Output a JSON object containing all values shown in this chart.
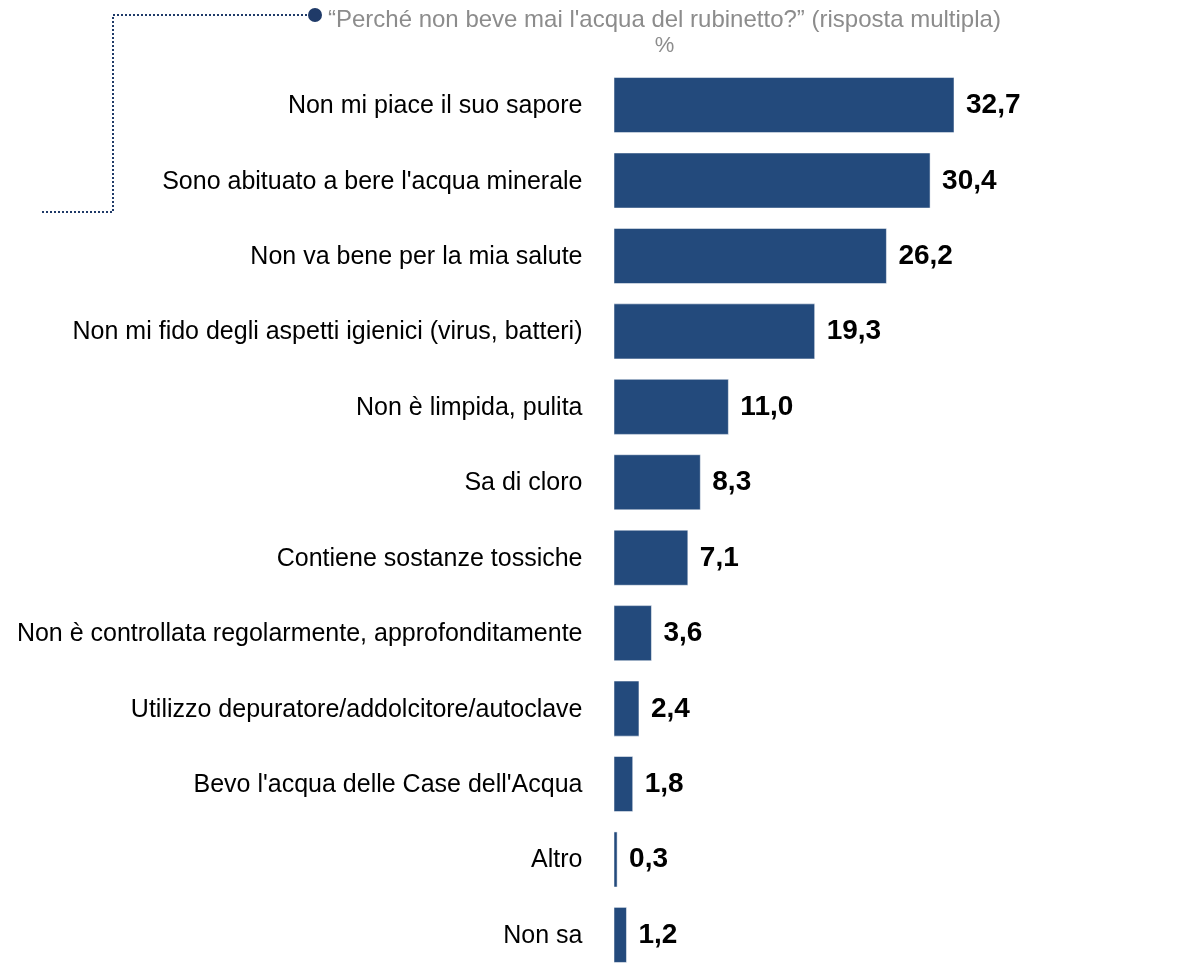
{
  "chart_data": {
    "type": "bar",
    "orientation": "horizontal",
    "title": "“Perché non beve mai l'acqua del rubinetto?” (risposta multipla)",
    "subtitle": "%",
    "categories": [
      "Non mi piace il suo sapore",
      "Sono abituato a bere l'acqua minerale",
      "Non va bene per la mia salute",
      "Non mi fido degli aspetti igienici (virus, batteri)",
      "Non è limpida, pulita",
      "Sa di cloro",
      "Contiene sostanze tossiche",
      "Non è controllata regolarmente, approfonditamente",
      "Utilizzo depuratore/addolcitore/autoclave",
      "Bevo l'acqua delle Case dell'Acqua",
      "Altro",
      "Non sa"
    ],
    "values": [
      32.7,
      30.4,
      26.2,
      19.3,
      11.0,
      8.3,
      7.1,
      3.6,
      2.4,
      1.8,
      0.3,
      1.2
    ],
    "value_labels": [
      "32,7",
      "30,4",
      "26,2",
      "19,3",
      "11,0",
      "8,3",
      "7,1",
      "3,6",
      "2,4",
      "1,8",
      "0,3",
      "1,2"
    ],
    "color": "#234a7c"
  }
}
